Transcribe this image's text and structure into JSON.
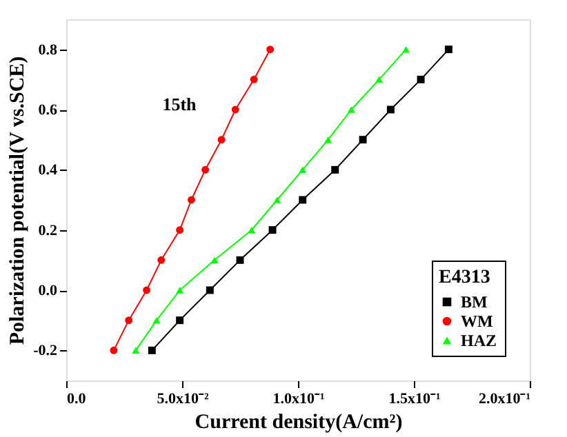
{
  "chart_data": {
    "type": "line",
    "xlabel": "Current density(A/cm²)",
    "ylabel": "Polarization potential(V vs.SCE)",
    "legend_title": "E4313",
    "legend": "bottom right",
    "marker": "circle",
    "line_style": "solid",
    "grid": false,
    "xlim": [
      0,
      0.2
    ],
    "xticks": [
      {
        "value": 0,
        "label": "0.0"
      },
      {
        "value": 0.05,
        "label": "5.0x10⁻²"
      },
      {
        "value": 0.1,
        "label": "1.0x10⁻¹"
      },
      {
        "value": 0.15,
        "label": "1.5x10⁻¹"
      },
      {
        "value": 0.2,
        "label": "2.0x10⁻¹"
      }
    ],
    "ylim": [
      -0.3,
      0.9
    ],
    "yticks": [
      {
        "value": -0.2,
        "label": "-0.2"
      },
      {
        "value": 0,
        "label": "0.0"
      },
      {
        "value": 0.2,
        "label": "0.2"
      },
      {
        "value": 0.4,
        "label": "0.4"
      },
      {
        "value": 0.6,
        "label": "0.6"
      },
      {
        "value": 0.8,
        "label": "0.8"
      }
    ],
    "annotations": [
      "15th"
    ],
    "series": [
      {
        "name": "BM",
        "color": "#000000",
        "marker": "square",
        "x": [
          0.037,
          0.049,
          0.062,
          0.075,
          0.089,
          0.102,
          0.116,
          0.128,
          0.14,
          0.153,
          0.165
        ],
        "values": [
          -0.2,
          -0.1,
          0.0,
          0.1,
          0.2,
          0.3,
          0.4,
          0.5,
          0.6,
          0.7,
          0.8
        ]
      },
      {
        "name": "WM",
        "color": "#ff0000",
        "marker": "circle",
        "x": [
          0.0205,
          0.027,
          0.0347,
          0.041,
          0.049,
          0.054,
          0.06,
          0.067,
          0.073,
          0.081,
          0.088
        ],
        "values": [
          -0.2,
          -0.1,
          0.0,
          0.1,
          0.2,
          0.3,
          0.4,
          0.5,
          0.6,
          0.7,
          0.8
        ]
      },
      {
        "name": "HAZ",
        "color": "#00ff00",
        "marker": "triangle",
        "x": [
          0.03,
          0.039,
          0.049,
          0.064,
          0.08,
          0.091,
          0.102,
          0.113,
          0.123,
          0.135,
          0.1466
        ],
        "values": [
          -0.2,
          -0.1,
          0.0,
          0.1,
          0.2,
          0.3,
          0.4,
          0.5,
          0.6,
          0.7,
          0.8
        ]
      }
    ]
  }
}
